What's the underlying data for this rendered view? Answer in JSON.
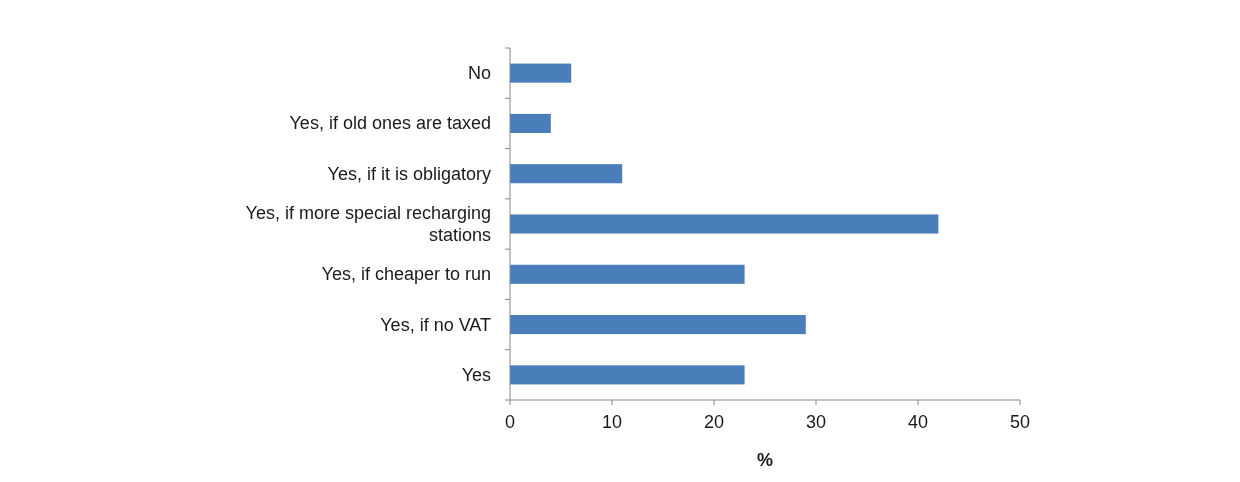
{
  "chart_data": {
    "type": "bar",
    "orientation": "horizontal",
    "xlabel": "%",
    "categories": [
      "No",
      "Yes, if old ones are taxed",
      "Yes, if it is obligatory",
      "Yes, if more special recharging stations",
      "Yes, if cheaper to run",
      "Yes, if no VAT",
      "Yes"
    ],
    "values": [
      6,
      4,
      11,
      42,
      23,
      29,
      23
    ],
    "color": "#4a7ebb",
    "xlim": [
      0,
      50
    ],
    "xticks": [
      0,
      10,
      20,
      30,
      40,
      50
    ],
    "grid": false
  }
}
